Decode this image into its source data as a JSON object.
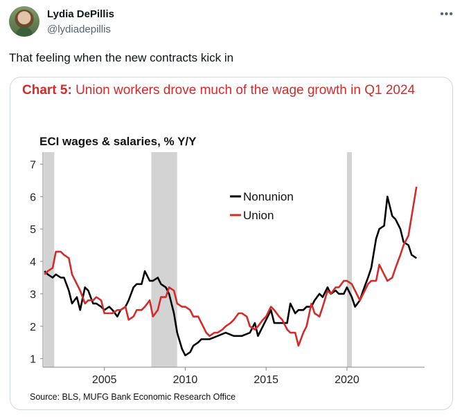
{
  "tweet": {
    "author_name": "Lydia DePillis",
    "author_handle": "@lydiadepillis",
    "more_icon": "more-horizontal-icon",
    "text": "That feeling when the new contracts kick in"
  },
  "chart_image": {
    "title_prefix": "Chart 5:",
    "title_main": "Union workers drove much of the wage growth in Q1 2024",
    "source": "Source: BLS, MUFG Bank Economic Research Office"
  },
  "colors": {
    "nonunion": "#000000",
    "union": "#d42a2a",
    "recession": "#d3d3d3",
    "title": "#d42a2a"
  },
  "chart_data": {
    "type": "line",
    "title": "ECI wages & salaries, % Y/Y",
    "xlabel": "",
    "ylabel": "",
    "xlim": [
      2001.2,
      2024.8
    ],
    "ylim": [
      0.8,
      7.2
    ],
    "x_ticks": [
      2005,
      2010,
      2015,
      2020
    ],
    "y_ticks": [
      1,
      2,
      3,
      4,
      5,
      6,
      7
    ],
    "legend_position": "center",
    "recessions": [
      [
        2001.25,
        2001.9
      ],
      [
        2007.9,
        2009.5
      ],
      [
        2020.0,
        2020.3
      ]
    ],
    "series": [
      {
        "name": "Nonunion",
        "color": "#000000",
        "points": [
          [
            2001.3,
            3.7
          ],
          [
            2001.5,
            3.6
          ],
          [
            2001.8,
            3.5
          ],
          [
            2002.0,
            3.6
          ],
          [
            2002.3,
            3.5
          ],
          [
            2002.5,
            3.5
          ],
          [
            2002.8,
            3.1
          ],
          [
            2003.0,
            2.7
          ],
          [
            2003.3,
            2.9
          ],
          [
            2003.5,
            2.5
          ],
          [
            2003.8,
            3.2
          ],
          [
            2004.0,
            3.1
          ],
          [
            2004.3,
            2.7
          ],
          [
            2004.5,
            2.7
          ],
          [
            2004.8,
            2.6
          ],
          [
            2005.0,
            2.5
          ],
          [
            2005.3,
            2.6
          ],
          [
            2005.5,
            2.5
          ],
          [
            2005.8,
            2.3
          ],
          [
            2006.0,
            2.5
          ],
          [
            2006.3,
            2.6
          ],
          [
            2006.5,
            2.8
          ],
          [
            2006.8,
            3.2
          ],
          [
            2007.0,
            3.3
          ],
          [
            2007.3,
            3.3
          ],
          [
            2007.5,
            3.7
          ],
          [
            2007.8,
            3.4
          ],
          [
            2008.0,
            3.4
          ],
          [
            2008.3,
            3.5
          ],
          [
            2008.5,
            3.3
          ],
          [
            2008.8,
            3.2
          ],
          [
            2009.0,
            3.0
          ],
          [
            2009.3,
            2.4
          ],
          [
            2009.5,
            1.8
          ],
          [
            2009.8,
            1.3
          ],
          [
            2010.0,
            1.1
          ],
          [
            2010.3,
            1.2
          ],
          [
            2010.5,
            1.4
          ],
          [
            2010.8,
            1.5
          ],
          [
            2011.0,
            1.6
          ],
          [
            2011.5,
            1.6
          ],
          [
            2012.0,
            1.7
          ],
          [
            2012.5,
            1.8
          ],
          [
            2013.0,
            1.7
          ],
          [
            2013.5,
            1.7
          ],
          [
            2014.0,
            1.8
          ],
          [
            2014.3,
            2.1
          ],
          [
            2014.5,
            1.7
          ],
          [
            2014.8,
            2.0
          ],
          [
            2015.0,
            2.2
          ],
          [
            2015.3,
            2.5
          ],
          [
            2015.5,
            2.1
          ],
          [
            2015.8,
            2.1
          ],
          [
            2016.0,
            2.1
          ],
          [
            2016.3,
            2.1
          ],
          [
            2016.5,
            2.7
          ],
          [
            2016.8,
            2.4
          ],
          [
            2017.0,
            2.5
          ],
          [
            2017.3,
            2.5
          ],
          [
            2017.5,
            2.6
          ],
          [
            2017.8,
            2.6
          ],
          [
            2018.0,
            2.8
          ],
          [
            2018.3,
            3.0
          ],
          [
            2018.5,
            2.9
          ],
          [
            2018.8,
            3.2
          ],
          [
            2019.0,
            3.0
          ],
          [
            2019.3,
            3.1
          ],
          [
            2019.5,
            3.0
          ],
          [
            2019.8,
            3.0
          ],
          [
            2020.0,
            3.2
          ],
          [
            2020.3,
            2.9
          ],
          [
            2020.5,
            2.6
          ],
          [
            2020.8,
            2.8
          ],
          [
            2021.0,
            3.1
          ],
          [
            2021.3,
            3.5
          ],
          [
            2021.5,
            3.8
          ],
          [
            2021.8,
            4.7
          ],
          [
            2022.0,
            5.0
          ],
          [
            2022.3,
            5.1
          ],
          [
            2022.5,
            6.0
          ],
          [
            2022.8,
            5.4
          ],
          [
            2023.0,
            5.3
          ],
          [
            2023.3,
            5.0
          ],
          [
            2023.5,
            4.6
          ],
          [
            2023.8,
            4.5
          ],
          [
            2024.0,
            4.2
          ],
          [
            2024.3,
            4.1
          ]
        ]
      },
      {
        "name": "Union",
        "color": "#d42a2a",
        "points": [
          [
            2001.3,
            3.6
          ],
          [
            2001.5,
            3.7
          ],
          [
            2001.8,
            3.8
          ],
          [
            2002.0,
            4.3
          ],
          [
            2002.3,
            4.3
          ],
          [
            2002.5,
            4.2
          ],
          [
            2002.8,
            4.1
          ],
          [
            2003.0,
            3.6
          ],
          [
            2003.3,
            3.3
          ],
          [
            2003.5,
            3.1
          ],
          [
            2003.8,
            2.7
          ],
          [
            2004.0,
            2.8
          ],
          [
            2004.3,
            2.8
          ],
          [
            2004.5,
            2.9
          ],
          [
            2004.8,
            2.8
          ],
          [
            2005.0,
            2.4
          ],
          [
            2005.3,
            2.4
          ],
          [
            2005.5,
            2.4
          ],
          [
            2005.8,
            2.5
          ],
          [
            2006.0,
            2.5
          ],
          [
            2006.3,
            2.6
          ],
          [
            2006.5,
            2.2
          ],
          [
            2006.8,
            2.3
          ],
          [
            2007.0,
            2.5
          ],
          [
            2007.3,
            2.5
          ],
          [
            2007.5,
            2.6
          ],
          [
            2007.8,
            2.8
          ],
          [
            2008.0,
            2.3
          ],
          [
            2008.3,
            2.5
          ],
          [
            2008.5,
            2.9
          ],
          [
            2008.8,
            2.9
          ],
          [
            2009.0,
            3.2
          ],
          [
            2009.3,
            3.1
          ],
          [
            2009.5,
            2.7
          ],
          [
            2009.8,
            2.6
          ],
          [
            2010.0,
            2.6
          ],
          [
            2010.3,
            2.5
          ],
          [
            2010.5,
            2.3
          ],
          [
            2010.8,
            2.3
          ],
          [
            2011.0,
            2.1
          ],
          [
            2011.3,
            1.8
          ],
          [
            2011.5,
            1.7
          ],
          [
            2011.8,
            1.8
          ],
          [
            2012.0,
            1.8
          ],
          [
            2012.3,
            1.9
          ],
          [
            2012.5,
            2.0
          ],
          [
            2012.8,
            2.1
          ],
          [
            2013.0,
            2.2
          ],
          [
            2013.3,
            2.4
          ],
          [
            2013.5,
            2.4
          ],
          [
            2013.8,
            2.3
          ],
          [
            2014.0,
            2.0
          ],
          [
            2014.3,
            1.9
          ],
          [
            2014.5,
            2.0
          ],
          [
            2014.8,
            2.2
          ],
          [
            2015.0,
            2.3
          ],
          [
            2015.3,
            2.6
          ],
          [
            2015.5,
            2.5
          ],
          [
            2015.8,
            2.3
          ],
          [
            2016.0,
            2.2
          ],
          [
            2016.3,
            1.9
          ],
          [
            2016.5,
            1.8
          ],
          [
            2016.8,
            1.8
          ],
          [
            2017.0,
            1.4
          ],
          [
            2017.3,
            1.8
          ],
          [
            2017.5,
            2.0
          ],
          [
            2017.8,
            2.7
          ],
          [
            2018.0,
            2.4
          ],
          [
            2018.3,
            2.3
          ],
          [
            2018.5,
            2.6
          ],
          [
            2018.8,
            3.1
          ],
          [
            2019.0,
            3.0
          ],
          [
            2019.3,
            3.2
          ],
          [
            2019.5,
            3.2
          ],
          [
            2019.8,
            3.4
          ],
          [
            2020.0,
            3.4
          ],
          [
            2020.3,
            3.3
          ],
          [
            2020.5,
            3.1
          ],
          [
            2020.8,
            2.8
          ],
          [
            2021.0,
            3.0
          ],
          [
            2021.3,
            3.3
          ],
          [
            2021.5,
            3.4
          ],
          [
            2021.8,
            3.4
          ],
          [
            2022.0,
            3.9
          ],
          [
            2022.3,
            3.6
          ],
          [
            2022.5,
            3.4
          ],
          [
            2022.8,
            3.5
          ],
          [
            2023.0,
            3.8
          ],
          [
            2023.3,
            4.2
          ],
          [
            2023.5,
            4.5
          ],
          [
            2023.8,
            4.8
          ],
          [
            2024.0,
            5.4
          ],
          [
            2024.3,
            6.3
          ]
        ]
      }
    ]
  }
}
